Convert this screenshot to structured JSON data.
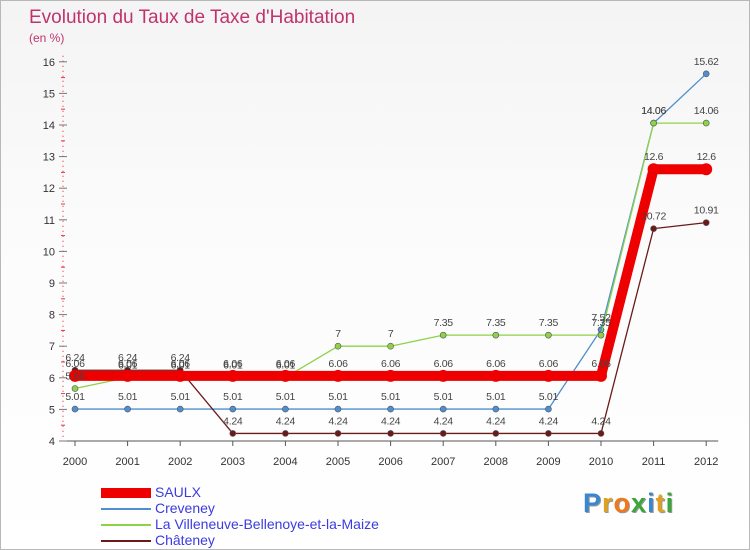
{
  "title": "Evolution du Taux de Taxe d'Habitation",
  "unit_label": "(en %)",
  "logo_letters": [
    {
      "ch": "P",
      "color": "#3a86d0"
    },
    {
      "ch": "r",
      "color": "#e0a020"
    },
    {
      "ch": "o",
      "color": "#f07818"
    },
    {
      "ch": "x",
      "color": "#39a839"
    },
    {
      "ch": "i",
      "color": "#3a86d0"
    },
    {
      "ch": "t",
      "color": "#e0a020"
    },
    {
      "ch": "i",
      "color": "#39a839"
    }
  ],
  "chart_data": {
    "type": "line",
    "title": "Evolution du Taux de Taxe d'Habitation",
    "ylabel": "(en %)",
    "xlabel": "",
    "ylim": [
      4,
      16
    ],
    "yticks": [
      4,
      5,
      6,
      7,
      8,
      9,
      10,
      11,
      12,
      13,
      14,
      15,
      16
    ],
    "categories": [
      "2000",
      "2001",
      "2002",
      "2003",
      "2004",
      "2005",
      "2006",
      "2007",
      "2008",
      "2009",
      "2010",
      "2011",
      "2012"
    ],
    "legend_position": "bottom-left",
    "series": [
      {
        "name": "SAULX",
        "color": "#ee0000",
        "values": [
          6.06,
          6.06,
          6.06,
          6.06,
          6.06,
          6.06,
          6.06,
          6.06,
          6.06,
          6.06,
          6.06,
          12.6,
          12.6
        ],
        "labels": [
          "6.06",
          "6.06",
          "6.06",
          "6.06",
          "6.06",
          "6.06",
          "6.06",
          "6.06",
          "6.06",
          "6.06",
          "6.06",
          "12.6",
          "12.6"
        ]
      },
      {
        "name": "Creveney",
        "color": "#4d8fcf",
        "values": [
          5.01,
          5.01,
          5.01,
          5.01,
          5.01,
          5.01,
          5.01,
          5.01,
          5.01,
          5.01,
          7.52,
          14.06,
          15.62
        ],
        "labels": [
          "5.01",
          "5.01",
          "5.01",
          "5.01",
          "5.01",
          "5.01",
          "5.01",
          "5.01",
          "5.01",
          "5.01",
          "7.52",
          "14.06",
          "15.62"
        ]
      },
      {
        "name": "La Villeneuve-Bellenoye-et-la-Maize",
        "color": "#8ed24a",
        "values": [
          5.66,
          6.01,
          6.01,
          6.01,
          6.01,
          7,
          7,
          7.35,
          7.35,
          7.35,
          7.35,
          14.06,
          14.06
        ],
        "labels": [
          "5.66",
          "6.01",
          "6.01",
          "6.01",
          "6.01",
          "7",
          "7",
          "7.35",
          "7.35",
          "7.35",
          "7.35",
          "14.06",
          "14.06"
        ]
      },
      {
        "name": "Châteney",
        "color": "#6b1a1a",
        "values": [
          6.24,
          6.24,
          6.24,
          4.24,
          4.24,
          4.24,
          4.24,
          4.24,
          4.24,
          4.24,
          4.24,
          10.72,
          10.91
        ],
        "labels": [
          "6.24",
          "6.24",
          "6.24",
          "4.24",
          "4.24",
          "4.24",
          "4.24",
          "4.24",
          "4.24",
          "4.24",
          "4.24",
          "10.72",
          "10.91"
        ]
      }
    ]
  }
}
